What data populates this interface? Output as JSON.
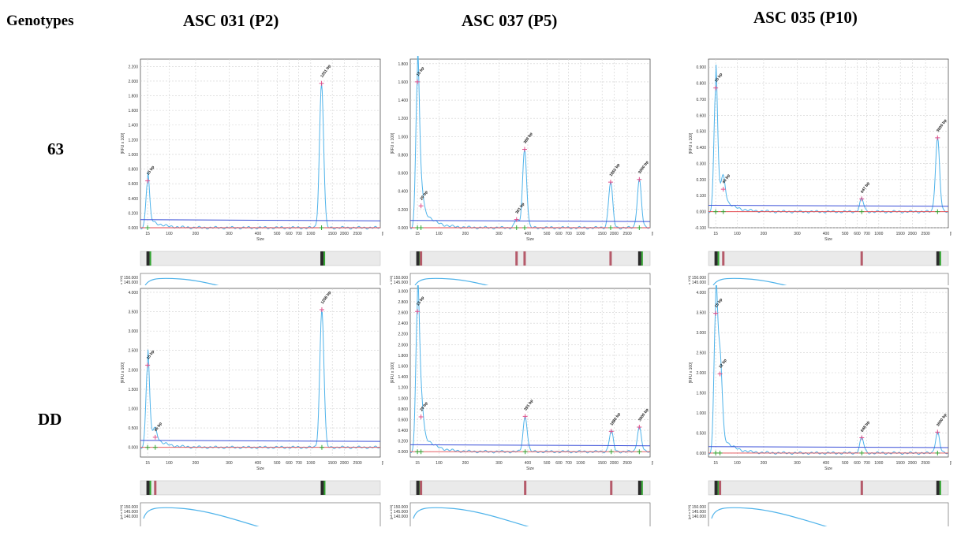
{
  "headers": {
    "genotypes": "Genotypes",
    "columns": [
      "ASC 031 (P2)",
      "ASC 037 (P5)",
      "ASC 035 (P10)"
    ],
    "rows": [
      "63",
      "DD"
    ]
  },
  "axis_text": {
    "xlabel": "Size",
    "ylabel": "[RFU x 100]",
    "x_ticks": [
      "15",
      "100",
      "200",
      "300",
      "400",
      "500",
      "600",
      "700",
      "1000",
      "1500",
      "2000",
      "2500",
      "[bp]"
    ],
    "current_ticks": [
      "150.000",
      "145.000",
      "140.000"
    ],
    "current_ylabel": "[µA x 100]"
  },
  "colors": {
    "trace": "#4fb3ea",
    "threshold": "#3a4fd8",
    "baseline": "#e2474d",
    "peak_marker": "#e0508a",
    "start_marker": "#33a532",
    "grid": "#d0d0d0"
  },
  "chart_data": [
    {
      "type": "line",
      "genotype": "63",
      "sample": "ASC 031 (P2)",
      "ylim": [
        0,
        2.3
      ],
      "y_ticks": [
        "0.000",
        "0.200",
        "0.400",
        "0.600",
        "0.800",
        "1.000",
        "1.200",
        "1.400",
        "1.600",
        "1.800",
        "2.000",
        "2.200"
      ],
      "threshold": 0.11,
      "peaks": [
        {
          "label": "15 bp",
          "x": 15,
          "y": 0.64
        },
        {
          "label": "1251 bp",
          "x": 1251,
          "y": 1.97
        }
      ],
      "gel_bands": [
        15,
        1251
      ]
    },
    {
      "type": "line",
      "genotype": "63",
      "sample": "ASC 037 (P5)",
      "ylim": [
        0,
        1.85
      ],
      "y_ticks": [
        "0.000",
        "0.200",
        "0.400",
        "0.600",
        "0.800",
        "1.000",
        "1.200",
        "1.400",
        "1.600",
        "1.800"
      ],
      "threshold": 0.08,
      "peaks": [
        {
          "label": "15 bp",
          "x": 15,
          "y": 1.6
        },
        {
          "label": "29 bp",
          "x": 29,
          "y": 0.24
        },
        {
          "label": "361 bp",
          "x": 361,
          "y": 0.09
        },
        {
          "label": "389 bp",
          "x": 389,
          "y": 0.86
        },
        {
          "label": "1853 bp",
          "x": 1853,
          "y": 0.5
        },
        {
          "label": "3000 bp",
          "x": 3000,
          "y": 0.53
        }
      ],
      "gel_bands": [
        15,
        29,
        361,
        389,
        1853,
        3000
      ]
    },
    {
      "type": "line",
      "genotype": "63",
      "sample": "ASC 035 (P10)",
      "ylim": [
        -0.1,
        0.95
      ],
      "y_ticks": [
        "-0.100",
        "0.000",
        "0.100",
        "0.200",
        "0.300",
        "0.400",
        "0.500",
        "0.600",
        "0.700",
        "0.800",
        "0.900"
      ],
      "threshold": 0.04,
      "peaks": [
        {
          "label": "15 bp",
          "x": 15,
          "y": 0.77
        },
        {
          "label": "45 bp",
          "x": 45,
          "y": 0.14
        },
        {
          "label": "647 bp",
          "x": 647,
          "y": 0.08
        },
        {
          "label": "3000 bp",
          "x": 3000,
          "y": 0.46
        }
      ],
      "gel_bands": [
        15,
        45,
        647,
        3000
      ]
    },
    {
      "type": "line",
      "genotype": "DD",
      "sample": "ASC 031 (P2)",
      "ylim": [
        -0.25,
        4.1
      ],
      "y_ticks": [
        "0.000",
        "0.500",
        "1.000",
        "1.500",
        "2.000",
        "2.500",
        "3.000",
        "3.500",
        "4.000"
      ],
      "threshold": 0.18,
      "peaks": [
        {
          "label": "15 bp",
          "x": 15,
          "y": 2.12
        },
        {
          "label": "45 bp",
          "x": 45,
          "y": 0.26
        },
        {
          "label": "1258 bp",
          "x": 1258,
          "y": 3.55
        }
      ],
      "gel_bands": [
        15,
        45,
        1258
      ]
    },
    {
      "type": "line",
      "genotype": "DD",
      "sample": "ASC 037 (P5)",
      "ylim": [
        -0.1,
        3.05
      ],
      "y_ticks": [
        "0.000",
        "0.200",
        "0.400",
        "0.600",
        "0.800",
        "1.000",
        "1.200",
        "1.400",
        "1.600",
        "1.800",
        "2.000",
        "2.200",
        "2.400",
        "2.600",
        "2.800",
        "3.000"
      ],
      "threshold": 0.13,
      "peaks": [
        {
          "label": "15 bp",
          "x": 15,
          "y": 2.62
        },
        {
          "label": "29 bp",
          "x": 29,
          "y": 0.65
        },
        {
          "label": "391 bp",
          "x": 391,
          "y": 0.66
        },
        {
          "label": "1880 bp",
          "x": 1880,
          "y": 0.38
        },
        {
          "label": "3000 bp",
          "x": 3000,
          "y": 0.46
        }
      ],
      "gel_bands": [
        15,
        29,
        391,
        1880,
        3000
      ]
    },
    {
      "type": "line",
      "genotype": "DD",
      "sample": "ASC 035 (P10)",
      "ylim": [
        -0.1,
        4.1
      ],
      "y_ticks": [
        "0.000",
        "0.500",
        "1.000",
        "1.500",
        "2.000",
        "2.500",
        "3.000",
        "3.500",
        "4.000"
      ],
      "threshold": 0.16,
      "peaks": [
        {
          "label": "15 bp",
          "x": 15,
          "y": 3.48
        },
        {
          "label": "32 bp",
          "x": 32,
          "y": 1.97
        },
        {
          "label": "648 bp",
          "x": 648,
          "y": 0.38
        },
        {
          "label": "3000 bp",
          "x": 3000,
          "y": 0.52
        }
      ],
      "gel_bands": [
        15,
        32,
        648,
        3000
      ]
    }
  ]
}
